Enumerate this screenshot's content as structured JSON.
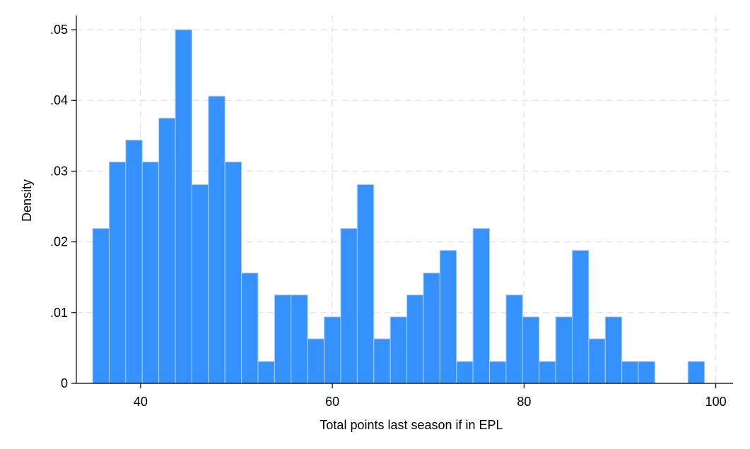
{
  "chart_data": {
    "type": "bar",
    "subtype": "histogram",
    "xlabel": "Total points last season if in EPL",
    "ylabel": "Density",
    "xlim": [
      33.3,
      101.8
    ],
    "ylim": [
      0,
      0.052
    ],
    "x_ticks": [
      40,
      60,
      80,
      100
    ],
    "x_tick_labels": [
      "40",
      "60",
      "80",
      "100"
    ],
    "y_ticks": [
      0,
      0.01,
      0.02,
      0.03,
      0.04,
      0.05
    ],
    "y_tick_labels": [
      "0",
      ".01",
      ".02",
      ".03",
      ".04",
      ".05"
    ],
    "grid": true,
    "bar_color": "#3592fc",
    "bin_start": 35,
    "bin_width": 1.725,
    "values": [
      0.0219,
      0.0313,
      0.0344,
      0.0313,
      0.0375,
      0.05,
      0.0281,
      0.0406,
      0.0313,
      0.0156,
      0.0031,
      0.0125,
      0.0125,
      0.0063,
      0.0094,
      0.0219,
      0.0281,
      0.0063,
      0.0094,
      0.0125,
      0.0156,
      0.0188,
      0.0031,
      0.0219,
      0.0031,
      0.0125,
      0.0094,
      0.0031,
      0.0094,
      0.0188,
      0.0063,
      0.0094,
      0.0031,
      0.0031,
      0,
      0,
      0.0031
    ]
  }
}
